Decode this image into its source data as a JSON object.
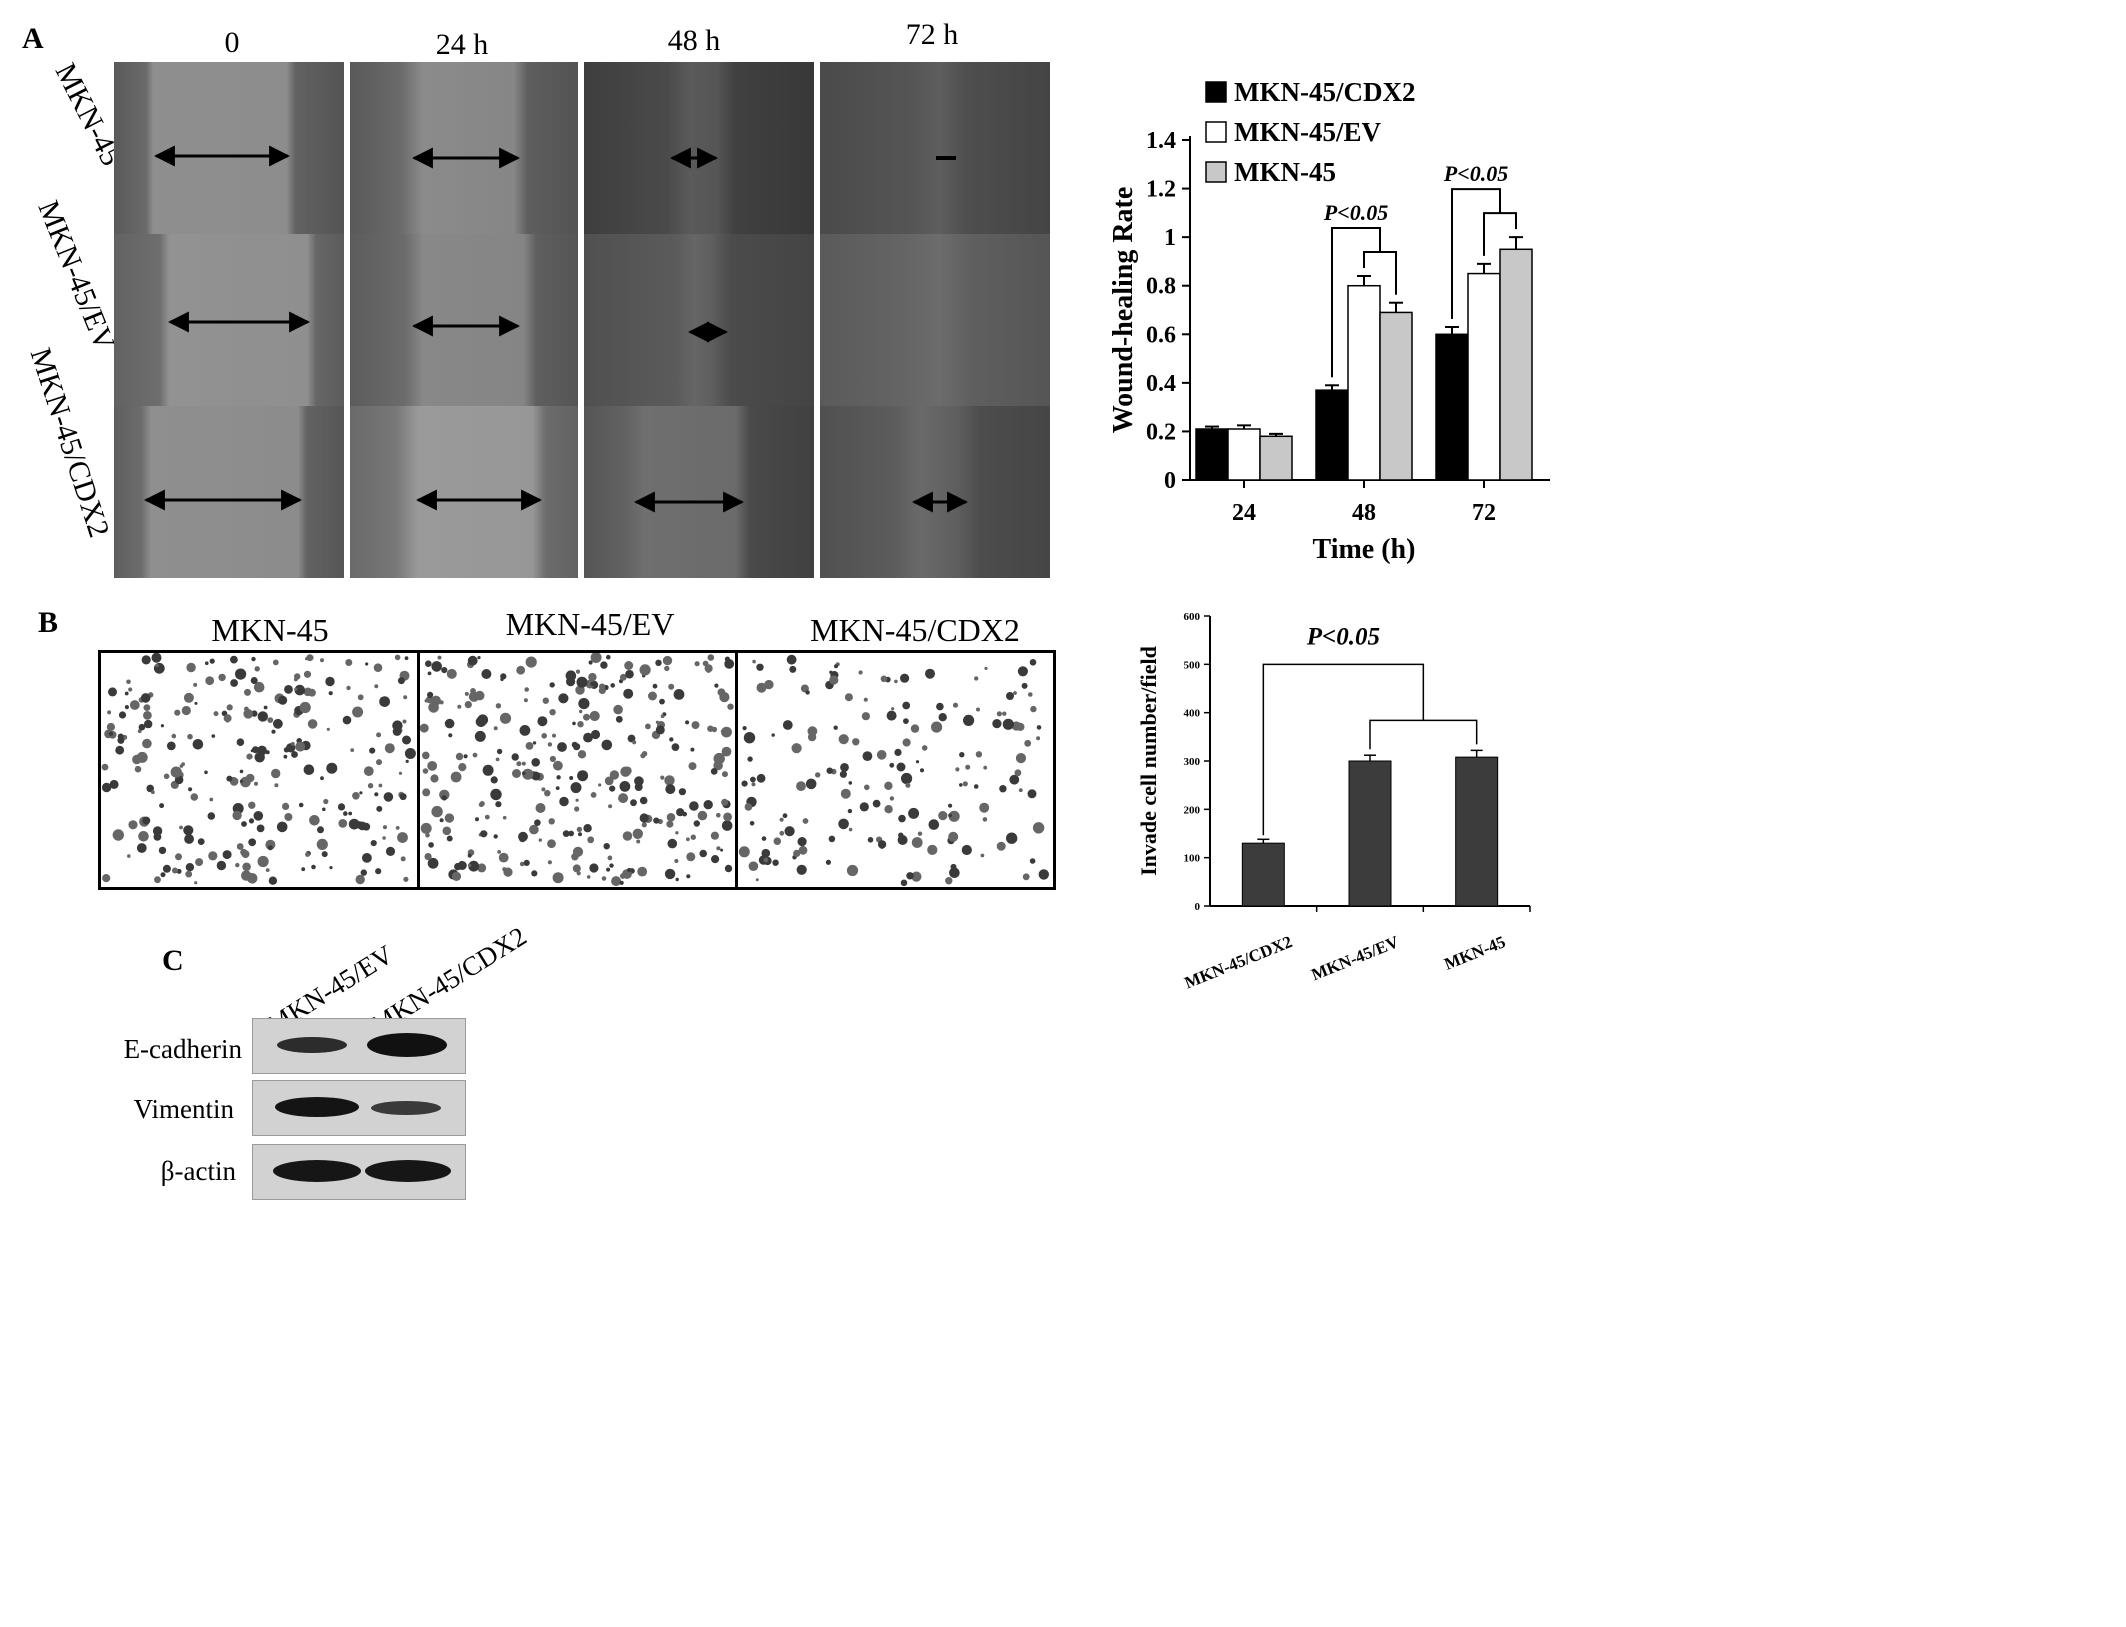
{
  "panels": {
    "a": "A",
    "b": "B",
    "c": "C"
  },
  "panelA": {
    "timepoints": [
      "0",
      "24 h",
      "48 h",
      "72 h"
    ],
    "rows": [
      "MKN-45",
      "MKN-45/EV",
      "MKN-45/CDX2"
    ]
  },
  "panelB": {
    "groups": [
      "MKN-45",
      "MKN-45/EV",
      "MKN-45/CDX2"
    ]
  },
  "panelC": {
    "lanes": [
      "MKN-45/EV",
      "MKN-45/CDX2"
    ],
    "proteins": [
      "E-cadherin",
      "Vimentin",
      "β-actin"
    ]
  },
  "chart_data": [
    {
      "type": "bar",
      "xlabel": "Time (h)",
      "ylabel": "Wound-healing Rate",
      "categories": [
        "24",
        "48",
        "72"
      ],
      "ylim": [
        0,
        1.4
      ],
      "yticks": [
        "0",
        "0.2",
        "0.4",
        "0.6",
        "0.8",
        "1",
        "1.2",
        "1.4"
      ],
      "legend_position": "top-left",
      "series": [
        {
          "name": "MKN-45/CDX2",
          "values": [
            0.21,
            0.37,
            0.6
          ],
          "errors": [
            0.01,
            0.02,
            0.03
          ],
          "color": "#000000"
        },
        {
          "name": "MKN-45/EV",
          "values": [
            0.21,
            0.8,
            0.85
          ],
          "errors": [
            0.015,
            0.04,
            0.04
          ],
          "color": "#ffffff"
        },
        {
          "name": "MKN-45",
          "values": [
            0.18,
            0.69,
            0.95
          ],
          "errors": [
            0.01,
            0.04,
            0.05
          ],
          "color": "#c8c8c8"
        }
      ],
      "annotations": [
        {
          "text": "P<0.05",
          "category": "48"
        },
        {
          "text": "P<0.05",
          "category": "72"
        }
      ]
    },
    {
      "type": "bar",
      "xlabel": "",
      "ylabel": "Invade cell number/field",
      "categories": [
        "MKN-45/CDX2",
        "MKN-45/EV",
        "MKN-45"
      ],
      "ylim": [
        0,
        600
      ],
      "yticks": [
        "0",
        "100",
        "200",
        "300",
        "400",
        "500",
        "600"
      ],
      "values": [
        130,
        300,
        308
      ],
      "errors": [
        8,
        12,
        14
      ],
      "color": "#3c3c3c",
      "annotations": [
        {
          "text": "P<0.05"
        }
      ]
    }
  ]
}
